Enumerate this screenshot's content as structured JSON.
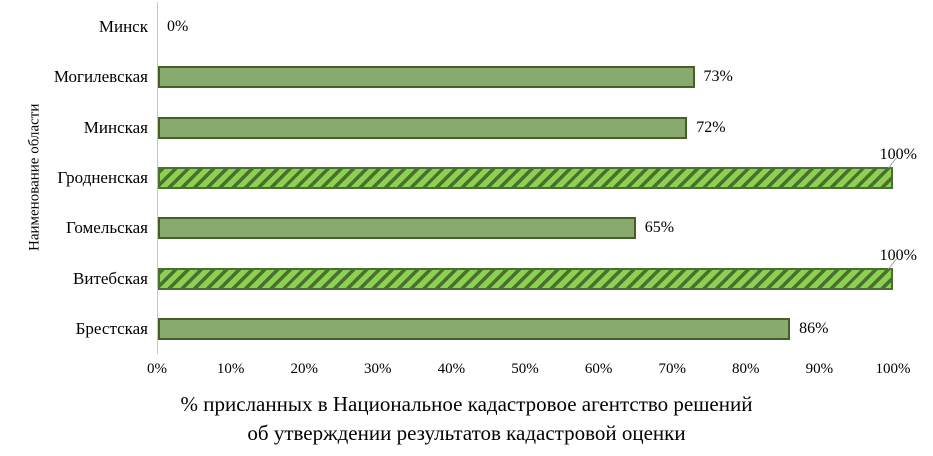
{
  "chart_data": {
    "type": "bar",
    "orientation": "horizontal",
    "title_line1": "% присланных в Национальное кадастровое агентство решений",
    "title_line2": "об утверждении результатов кадастровой оценки",
    "ylabel": "Наименование области",
    "xlabel": "",
    "categories": [
      "Минск",
      "Могилевская",
      "Минская",
      "Гродненская",
      "Гомельская",
      "Витебская",
      "Брестская"
    ],
    "values": [
      0,
      73,
      72,
      100,
      65,
      100,
      86
    ],
    "value_labels": [
      "0%",
      "73%",
      "72%",
      "100%",
      "65%",
      "100%",
      "86%"
    ],
    "hatched": [
      false,
      false,
      false,
      true,
      false,
      true,
      false
    ],
    "xticks": [
      "0%",
      "10%",
      "20%",
      "30%",
      "40%",
      "50%",
      "60%",
      "70%",
      "80%",
      "90%",
      "100%"
    ],
    "xlim": [
      0,
      100
    ],
    "grid": false,
    "legend": false,
    "colors": {
      "solid_fill": "#88aa6e",
      "solid_border": "#465f24",
      "hatch_fill": "#8ed04f",
      "hatch_stripe": "#4a7031",
      "axis_line": "#c6c6c6",
      "leader_line": "#a6a6a6",
      "text_color": "#000000"
    }
  }
}
